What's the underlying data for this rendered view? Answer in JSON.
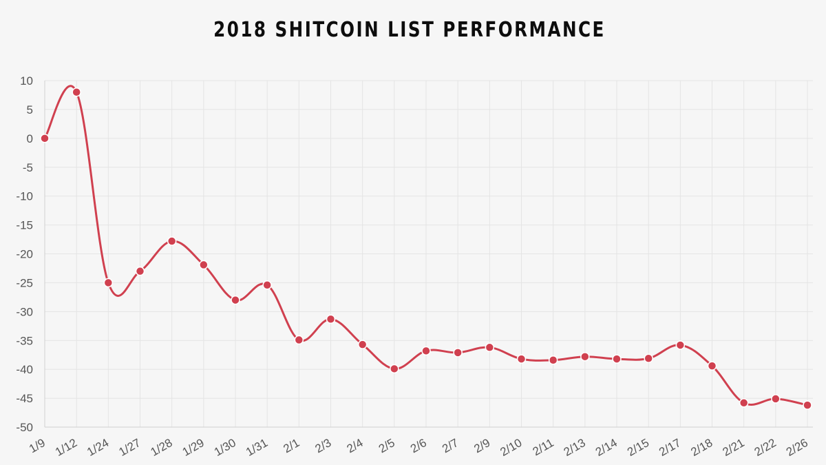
{
  "title": "2018 SHITCOIN LIST PERFORMANCE",
  "colors": {
    "background": "#f6f6f6",
    "line": "#d0404f",
    "grid": "#e4e4e4"
  },
  "chart_data": {
    "type": "line",
    "title": "2018 SHITCOIN LIST PERFORMANCE",
    "xlabel": "",
    "ylabel": "",
    "ylim": [
      -50,
      10
    ],
    "yticks": [
      10,
      5,
      0,
      -5,
      -10,
      -15,
      -20,
      -25,
      -30,
      -35,
      -40,
      -45,
      -50
    ],
    "grid": true,
    "legend": "none",
    "categories": [
      "1/9",
      "1/12",
      "1/24",
      "1/27",
      "1/28",
      "1/29",
      "1/30",
      "1/31",
      "2/1",
      "2/3",
      "2/4",
      "2/5",
      "2/6",
      "2/7",
      "2/9",
      "2/10",
      "2/11",
      "2/13",
      "2/14",
      "2/15",
      "2/17",
      "2/18",
      "2/21",
      "2/22",
      "2/26"
    ],
    "series": [
      {
        "values": [
          0,
          8,
          -25,
          -23,
          -17.8,
          -21.9,
          -28,
          -25.4,
          -34.9,
          -31.3,
          -35.7,
          -39.9,
          -36.8,
          -37.1,
          -36.2,
          -38.2,
          -38.4,
          -37.8,
          -38.2,
          -38.1,
          -35.8,
          -39.4,
          -45.8,
          -45.1,
          -46.2
        ],
        "color": "#d0404f"
      }
    ]
  }
}
